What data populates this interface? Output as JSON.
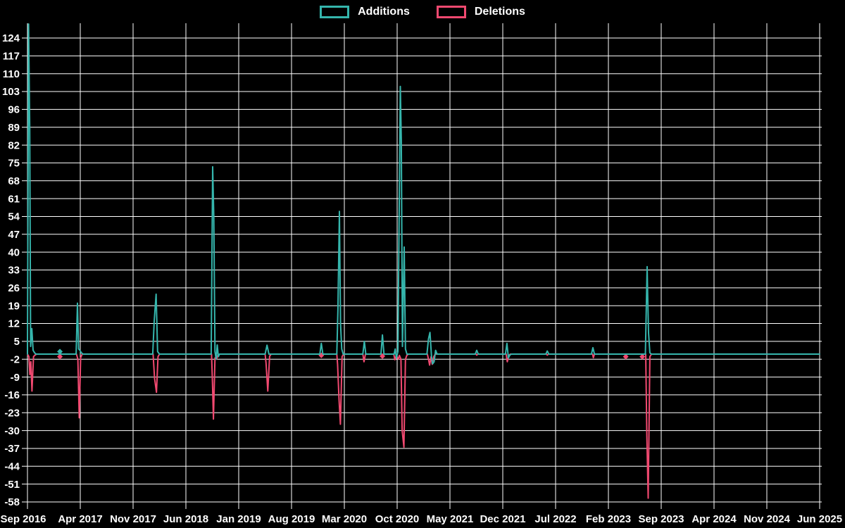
{
  "legend": {
    "items": [
      {
        "label": "Additions",
        "color": "#35b5ac"
      },
      {
        "label": "Deletions",
        "color": "#f14970"
      }
    ]
  },
  "chart_data": {
    "type": "line",
    "title": "",
    "xlabel": "",
    "ylabel": "",
    "grid": true,
    "legend_position": "top-center",
    "colors": {
      "background": "#000000",
      "grid": "#ffffff",
      "text": "#ffffff"
    },
    "x_axis": {
      "tick_labels": [
        "Sep 2016",
        "Apr 2017",
        "Nov 2017",
        "Jun 2018",
        "Jan 2019",
        "Aug 2019",
        "Mar 2020",
        "Oct 2020",
        "May 2021",
        "Dec 2021",
        "Jul 2022",
        "Feb 2023",
        "Sep 2023",
        "Apr 2024",
        "Nov 2024",
        "Jun 2025"
      ],
      "tick_interval_months": 7,
      "months_total": 105
    },
    "y_axis": {
      "tick_labels": [
        124,
        117,
        110,
        103,
        96,
        89,
        82,
        75,
        68,
        61,
        54,
        47,
        40,
        33,
        26,
        19,
        12,
        5,
        -2,
        -9,
        -16,
        -23,
        -30,
        -37,
        -44,
        -51,
        -58
      ],
      "tick_max": 124,
      "tick_min": -58,
      "tick_step": 7,
      "ylim": [
        -60.7,
        129.8
      ]
    },
    "series": [
      {
        "name": "Additions",
        "color": "#35b5ac",
        "points": [
          [
            0,
            0
          ],
          [
            0.15,
            129.5
          ],
          [
            0.3,
            89
          ],
          [
            0.42,
            3
          ],
          [
            0.58,
            10
          ],
          [
            0.75,
            1.5
          ],
          [
            0.95,
            0.5
          ],
          [
            1.15,
            0
          ],
          [
            4.2,
            0
          ],
          [
            4.3,
            1
          ],
          [
            4.45,
            0
          ],
          [
            6.45,
            0
          ],
          [
            6.63,
            20
          ],
          [
            6.78,
            2
          ],
          [
            6.95,
            1.5
          ],
          [
            7.15,
            0.5
          ],
          [
            7.35,
            0
          ],
          [
            16.6,
            0
          ],
          [
            16.8,
            13
          ],
          [
            17.05,
            23.5
          ],
          [
            17.25,
            1
          ],
          [
            17.5,
            0
          ],
          [
            24.35,
            0
          ],
          [
            24.55,
            73.5
          ],
          [
            24.7,
            54
          ],
          [
            24.85,
            1
          ],
          [
            25.0,
            -2
          ],
          [
            25.15,
            3.6
          ],
          [
            25.3,
            -1
          ],
          [
            25.45,
            0
          ],
          [
            31.5,
            0
          ],
          [
            31.75,
            3.5
          ],
          [
            32.0,
            0
          ],
          [
            38.75,
            0
          ],
          [
            38.95,
            4.2
          ],
          [
            39.15,
            0
          ],
          [
            41.0,
            0
          ],
          [
            41.15,
            17.5
          ],
          [
            41.35,
            56
          ],
          [
            41.5,
            12
          ],
          [
            41.65,
            2
          ],
          [
            41.85,
            0
          ],
          [
            44.45,
            0
          ],
          [
            44.65,
            5
          ],
          [
            44.85,
            0
          ],
          [
            46.85,
            0
          ],
          [
            47.05,
            7.5
          ],
          [
            47.25,
            0
          ],
          [
            48.6,
            0
          ],
          [
            48.75,
            2
          ],
          [
            48.9,
            -1.5
          ],
          [
            49.1,
            1
          ],
          [
            49.42,
            105
          ],
          [
            49.55,
            84
          ],
          [
            49.7,
            3
          ],
          [
            49.93,
            42
          ],
          [
            50.1,
            2
          ],
          [
            50.3,
            0
          ],
          [
            52.95,
            0
          ],
          [
            53.15,
            6
          ],
          [
            53.35,
            8.5
          ],
          [
            53.55,
            -1
          ],
          [
            53.7,
            -3.8
          ],
          [
            53.9,
            -3
          ],
          [
            54.1,
            1.5
          ],
          [
            54.3,
            0
          ],
          [
            59.35,
            0
          ],
          [
            59.55,
            1.5
          ],
          [
            59.75,
            0
          ],
          [
            63.35,
            0
          ],
          [
            63.55,
            4.2
          ],
          [
            63.75,
            -1.5
          ],
          [
            63.95,
            -0.3
          ],
          [
            64.15,
            0
          ],
          [
            68.7,
            0
          ],
          [
            68.9,
            1.2
          ],
          [
            69.1,
            0
          ],
          [
            74.75,
            0
          ],
          [
            74.95,
            2.5
          ],
          [
            75.15,
            0
          ],
          [
            81.9,
            0
          ],
          [
            82.13,
            34.3
          ],
          [
            82.22,
            22
          ],
          [
            82.32,
            8.3
          ],
          [
            82.5,
            0.5
          ],
          [
            82.7,
            0
          ],
          [
            105,
            0
          ]
        ],
        "markers": [
          [
            4.3,
            1
          ]
        ]
      },
      {
        "name": "Deletions",
        "color": "#f14970",
        "points": [
          [
            0,
            0
          ],
          [
            0.2,
            -1
          ],
          [
            0.32,
            -8
          ],
          [
            0.45,
            -3
          ],
          [
            0.6,
            -14.5
          ],
          [
            0.8,
            -1
          ],
          [
            1.0,
            -0.4
          ],
          [
            1.2,
            0
          ],
          [
            4.2,
            0
          ],
          [
            4.3,
            -1
          ],
          [
            4.45,
            0
          ],
          [
            6.5,
            0
          ],
          [
            6.68,
            -2
          ],
          [
            6.86,
            -25
          ],
          [
            7.05,
            -1.5
          ],
          [
            7.25,
            0
          ],
          [
            16.65,
            0
          ],
          [
            16.85,
            -9.5
          ],
          [
            17.1,
            -15
          ],
          [
            17.3,
            -1
          ],
          [
            17.5,
            0
          ],
          [
            24.4,
            0
          ],
          [
            24.52,
            -11
          ],
          [
            24.65,
            -25.5
          ],
          [
            24.85,
            -1.5
          ],
          [
            25.05,
            -2
          ],
          [
            25.25,
            -0.5
          ],
          [
            25.45,
            0
          ],
          [
            31.5,
            0
          ],
          [
            31.62,
            -3.5
          ],
          [
            31.85,
            -14.5
          ],
          [
            32.1,
            -0.8
          ],
          [
            32.3,
            0
          ],
          [
            38.85,
            0
          ],
          [
            38.95,
            -0.5
          ],
          [
            39.1,
            0
          ],
          [
            41.0,
            0
          ],
          [
            41.1,
            -4
          ],
          [
            41.3,
            -18
          ],
          [
            41.48,
            -27.5
          ],
          [
            41.7,
            -1
          ],
          [
            41.9,
            0
          ],
          [
            44.45,
            0
          ],
          [
            44.6,
            -3
          ],
          [
            44.8,
            0
          ],
          [
            46.95,
            0
          ],
          [
            47.05,
            -0.8
          ],
          [
            47.2,
            0
          ],
          [
            48.55,
            0
          ],
          [
            48.7,
            -2.2
          ],
          [
            48.9,
            -0.4
          ],
          [
            49.15,
            -2
          ],
          [
            49.3,
            -0.5
          ],
          [
            49.5,
            -2
          ],
          [
            49.66,
            -30
          ],
          [
            49.9,
            -36.5
          ],
          [
            50.1,
            -2
          ],
          [
            50.3,
            -0.4
          ],
          [
            50.5,
            0
          ],
          [
            53.0,
            0
          ],
          [
            53.15,
            -2
          ],
          [
            53.3,
            -4.3
          ],
          [
            53.5,
            -1
          ],
          [
            53.65,
            -4
          ],
          [
            53.85,
            -1
          ],
          [
            54.05,
            0
          ],
          [
            59.45,
            0
          ],
          [
            59.55,
            -0.4
          ],
          [
            59.7,
            0
          ],
          [
            63.45,
            0
          ],
          [
            63.6,
            -3
          ],
          [
            63.8,
            -0.5
          ],
          [
            64.0,
            0
          ],
          [
            68.8,
            0
          ],
          [
            68.9,
            -0.4
          ],
          [
            69.05,
            0
          ],
          [
            74.9,
            0
          ],
          [
            75.0,
            -1.4
          ],
          [
            75.15,
            0
          ],
          [
            79.2,
            0
          ],
          [
            79.3,
            -1
          ],
          [
            79.45,
            0
          ],
          [
            81.4,
            0
          ],
          [
            81.5,
            -1
          ],
          [
            81.65,
            0
          ],
          [
            81.95,
            0
          ],
          [
            82.1,
            -32
          ],
          [
            82.27,
            -56.5
          ],
          [
            82.5,
            -1
          ],
          [
            82.7,
            0
          ],
          [
            105,
            0
          ]
        ],
        "markers": [
          [
            4.3,
            -1
          ],
          [
            38.95,
            -0.5
          ],
          [
            47.05,
            -0.8
          ],
          [
            79.3,
            -1
          ],
          [
            81.5,
            -1
          ]
        ]
      }
    ]
  }
}
